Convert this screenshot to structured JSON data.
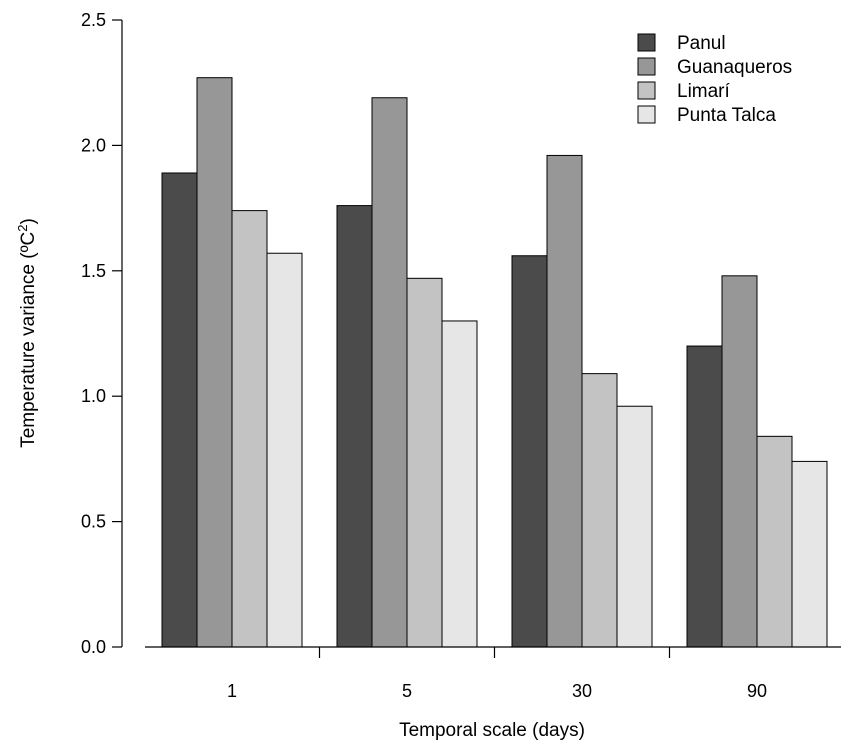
{
  "chart_data": {
    "type": "bar",
    "categories": [
      "1",
      "5",
      "30",
      "90"
    ],
    "series": [
      {
        "name": "Panul",
        "values": [
          1.89,
          1.76,
          1.56,
          1.2
        ],
        "color": "#4b4b4b"
      },
      {
        "name": "Guanaqueros",
        "values": [
          2.27,
          2.19,
          1.96,
          1.48
        ],
        "color": "#979797"
      },
      {
        "name": "Limarí",
        "values": [
          1.74,
          1.47,
          1.09,
          0.84
        ],
        "color": "#c3c3c3"
      },
      {
        "name": "Punta Talca",
        "values": [
          1.57,
          1.3,
          0.96,
          0.74
        ],
        "color": "#e6e6e6"
      }
    ],
    "xlabel": "Temporal scale (days)",
    "ylabel": "Temperature variance (ºC",
    "ylabel_sup": "2",
    "ylabel_end": ")",
    "ylim": [
      0,
      2.5
    ],
    "yticks": [
      "0.0",
      "0.5",
      "1.0",
      "1.5",
      "2.0",
      "2.5"
    ],
    "grid": false,
    "legend_position": "top-right"
  }
}
